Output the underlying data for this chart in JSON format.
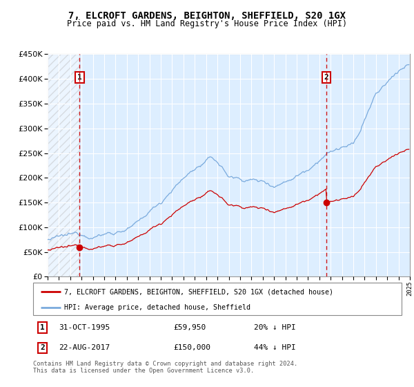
{
  "title": "7, ELCROFT GARDENS, BEIGHTON, SHEFFIELD, S20 1GX",
  "subtitle": "Price paid vs. HM Land Registry's House Price Index (HPI)",
  "sale1_date": 1995.83,
  "sale1_price": 59950,
  "sale1_label": "1",
  "sale1_info": "31-OCT-1995",
  "sale1_price_str": "£59,950",
  "sale1_hpi": "20% ↓ HPI",
  "sale2_date": 2017.64,
  "sale2_price": 150000,
  "sale2_label": "2",
  "sale2_info": "22-AUG-2017",
  "sale2_price_str": "£150,000",
  "sale2_hpi": "44% ↓ HPI",
  "legend_line1": "7, ELCROFT GARDENS, BEIGHTON, SHEFFIELD, S20 1GX (detached house)",
  "legend_line2": "HPI: Average price, detached house, Sheffield",
  "footer": "Contains HM Land Registry data © Crown copyright and database right 2024.\nThis data is licensed under the Open Government Licence v3.0.",
  "xmin": 1993,
  "xmax": 2025,
  "ymin": 0,
  "ymax": 450000,
  "red_color": "#cc0000",
  "blue_color": "#7aaadd",
  "bg_color": "#ddeeff",
  "hatch_color": "#bbbbbb"
}
